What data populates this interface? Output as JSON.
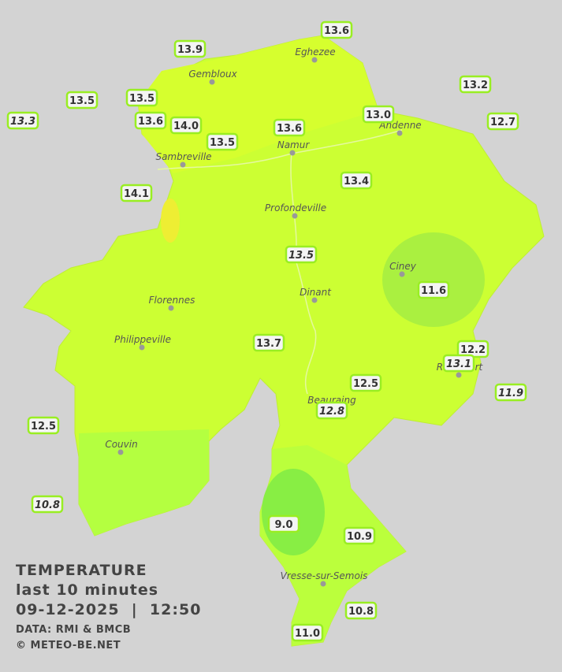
{
  "legend": {
    "title": "TEMPERATURE",
    "subtitle": "last 10 minutes",
    "datetime": "09-12-2025  |  12:50",
    "source": "DATA: RMI & BMCB",
    "copyright": "© METEO-BE.NET"
  },
  "cities": [
    "Eghezee",
    "Gembloux",
    "Andenne",
    "Namur",
    "Sambreville",
    "Profondeville",
    "Ciney",
    "Dinant",
    "Florennes",
    "Philippeville",
    "Rochefort",
    "Beauraing",
    "Couvin",
    "Vresse-sur-Semois"
  ],
  "stations": [
    {
      "value": "13.6",
      "italic": false
    },
    {
      "value": "13.9",
      "italic": false
    },
    {
      "value": "13.2",
      "italic": false
    },
    {
      "value": "13.5",
      "italic": false
    },
    {
      "value": "13.5",
      "italic": false
    },
    {
      "value": "13.3",
      "italic": true
    },
    {
      "value": "13.6",
      "italic": false
    },
    {
      "value": "14.0",
      "italic": false
    },
    {
      "value": "13.0",
      "italic": false
    },
    {
      "value": "12.7",
      "italic": false
    },
    {
      "value": "13.6",
      "italic": false
    },
    {
      "value": "13.5",
      "italic": false
    },
    {
      "value": "13.4",
      "italic": false
    },
    {
      "value": "14.1",
      "italic": false
    },
    {
      "value": "13.5",
      "italic": true
    },
    {
      "value": "11.6",
      "italic": false
    },
    {
      "value": "13.7",
      "italic": false
    },
    {
      "value": "12.2",
      "italic": false
    },
    {
      "value": "13.1",
      "italic": true
    },
    {
      "value": "12.5",
      "italic": false
    },
    {
      "value": "11.9",
      "italic": true
    },
    {
      "value": "12.8",
      "italic": true
    },
    {
      "value": "12.5",
      "italic": false
    },
    {
      "value": "10.8",
      "italic": true
    },
    {
      "value": "9.0",
      "italic": false
    },
    {
      "value": "10.9",
      "italic": false
    },
    {
      "value": "10.8",
      "italic": false
    },
    {
      "value": "11.0",
      "italic": false
    }
  ]
}
